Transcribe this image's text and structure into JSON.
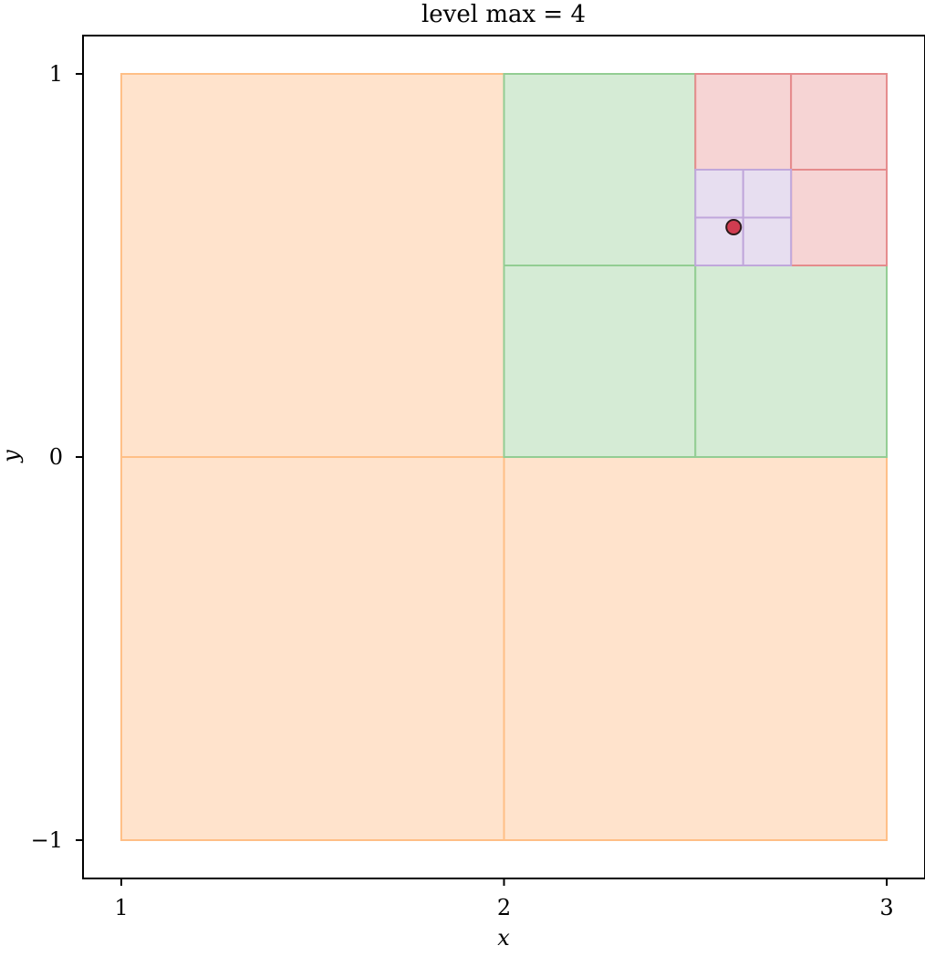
{
  "chart_data": {
    "type": "heatmap",
    "title": "level max = 4",
    "xlabel": "x",
    "ylabel": "y",
    "xlim": [
      0.9,
      3.1
    ],
    "ylim": [
      -1.1,
      1.1
    ],
    "grid": false,
    "x_ticks": [
      {
        "value": 1,
        "label": "1"
      },
      {
        "value": 2,
        "label": "2"
      },
      {
        "value": 3,
        "label": "3"
      }
    ],
    "y_ticks": [
      {
        "value": -1,
        "label": "−1"
      },
      {
        "value": 0,
        "label": "0"
      },
      {
        "value": 1,
        "label": "1"
      }
    ],
    "cells": [
      {
        "level": 1,
        "x0": 1,
        "x1": 2,
        "y0": 0,
        "y1": 1
      },
      {
        "level": 1,
        "x0": 1,
        "x1": 2,
        "y0": -1,
        "y1": 0
      },
      {
        "level": 1,
        "x0": 2,
        "x1": 3,
        "y0": -1,
        "y1": 0
      },
      {
        "level": 2,
        "x0": 2,
        "x1": 2.5,
        "y0": 0.5,
        "y1": 1
      },
      {
        "level": 2,
        "x0": 2,
        "x1": 2.5,
        "y0": 0,
        "y1": 0.5
      },
      {
        "level": 2,
        "x0": 2.5,
        "x1": 3,
        "y0": 0,
        "y1": 0.5
      },
      {
        "level": 3,
        "x0": 2.5,
        "x1": 2.75,
        "y0": 0.75,
        "y1": 1
      },
      {
        "level": 3,
        "x0": 2.75,
        "x1": 3,
        "y0": 0.75,
        "y1": 1
      },
      {
        "level": 3,
        "x0": 2.75,
        "x1": 3,
        "y0": 0.5,
        "y1": 0.75
      },
      {
        "level": 4,
        "x0": 2.5,
        "x1": 2.625,
        "y0": 0.625,
        "y1": 0.75
      },
      {
        "level": 4,
        "x0": 2.625,
        "x1": 2.75,
        "y0": 0.625,
        "y1": 0.75
      },
      {
        "level": 4,
        "x0": 2.5,
        "x1": 2.625,
        "y0": 0.5,
        "y1": 0.625
      },
      {
        "level": 4,
        "x0": 2.625,
        "x1": 2.75,
        "y0": 0.5,
        "y1": 0.625
      }
    ],
    "level_colors": {
      "1": {
        "fill": "#ffe3cc",
        "stroke": "#ffbf86"
      },
      "2": {
        "fill": "#d5ebd5",
        "stroke": "#93cd93"
      },
      "3": {
        "fill": "#f6d4d4",
        "stroke": "#e58b8c"
      },
      "4": {
        "fill": "#e7def0",
        "stroke": "#c0a7db"
      }
    },
    "points": [
      {
        "x": 2.6,
        "y": 0.6,
        "fill": "#d03c50",
        "stroke": "#2b1a1a"
      }
    ]
  }
}
